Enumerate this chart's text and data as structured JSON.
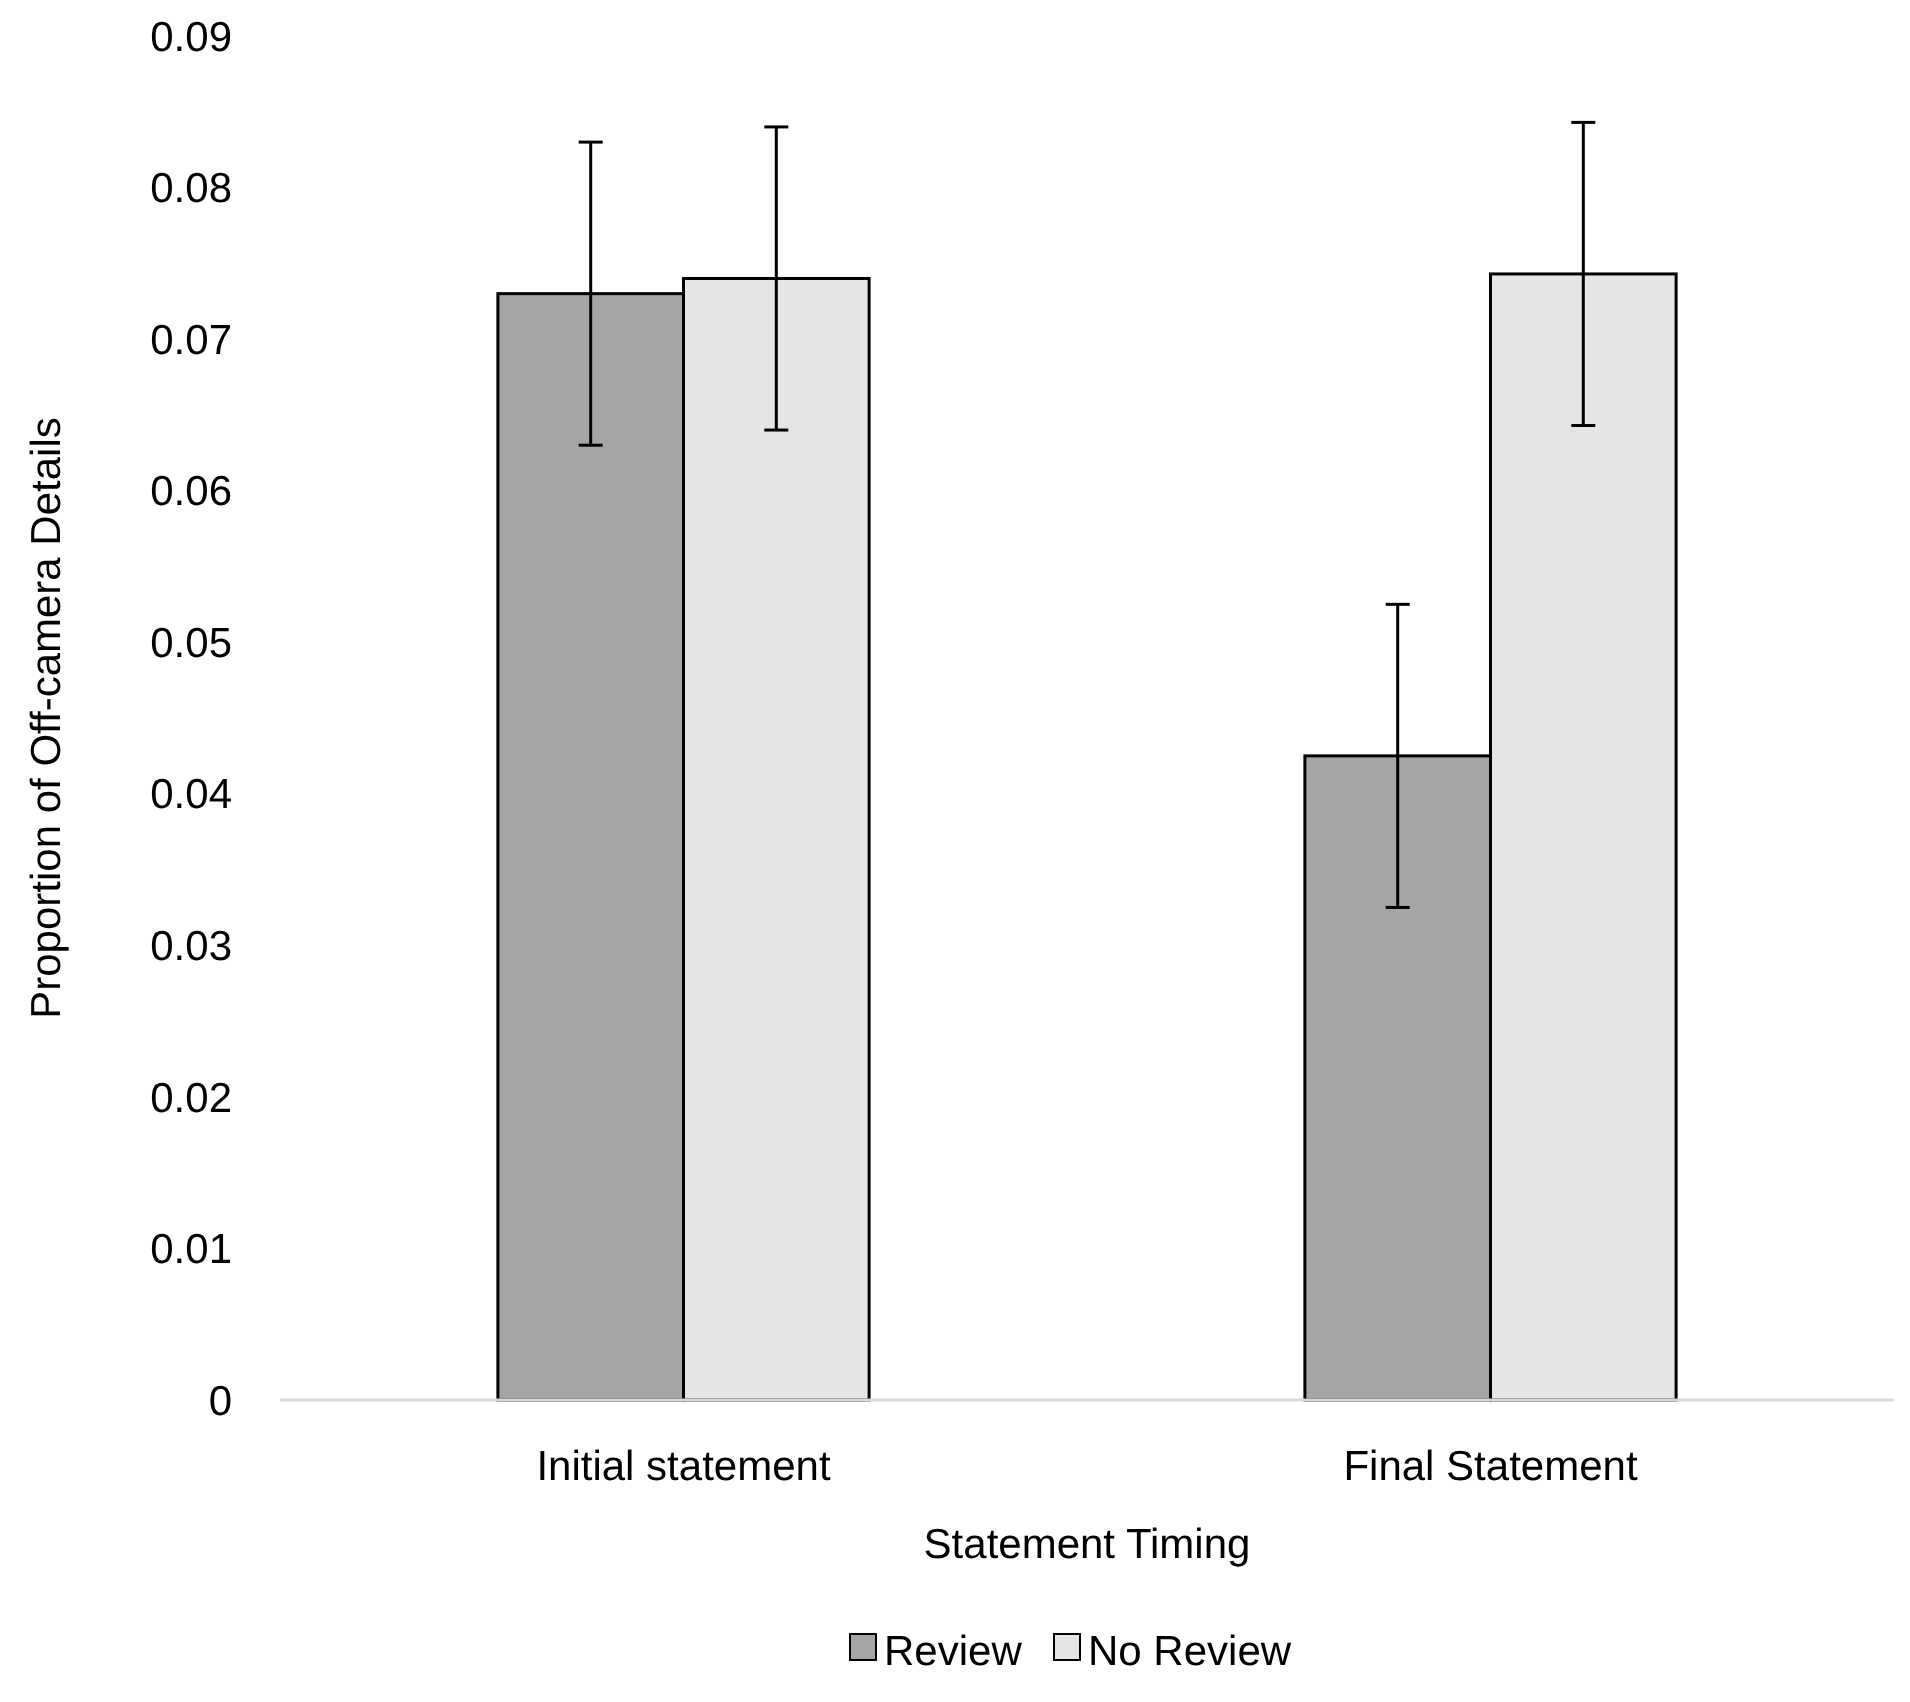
{
  "chart_data": {
    "type": "bar",
    "xlabel": "Statement Timing",
    "ylabel": "Proportion of Off-camera Details",
    "categories": [
      "Initial statement",
      "Final Statement"
    ],
    "series": [
      {
        "name": "Review",
        "color": "#a5a5a5",
        "values": [
          0.073,
          0.0425
        ],
        "errors": [
          0.01,
          0.01
        ]
      },
      {
        "name": "No Review",
        "color": "#e5e5e5",
        "values": [
          0.074,
          0.0743
        ],
        "errors": [
          0.01,
          0.01
        ]
      }
    ],
    "ylim": [
      0,
      0.09
    ],
    "yticks": [
      0,
      0.01,
      0.02,
      0.03,
      0.04,
      0.05,
      0.06,
      0.07,
      0.08,
      0.09
    ],
    "grid": false,
    "legend": "bottom"
  }
}
